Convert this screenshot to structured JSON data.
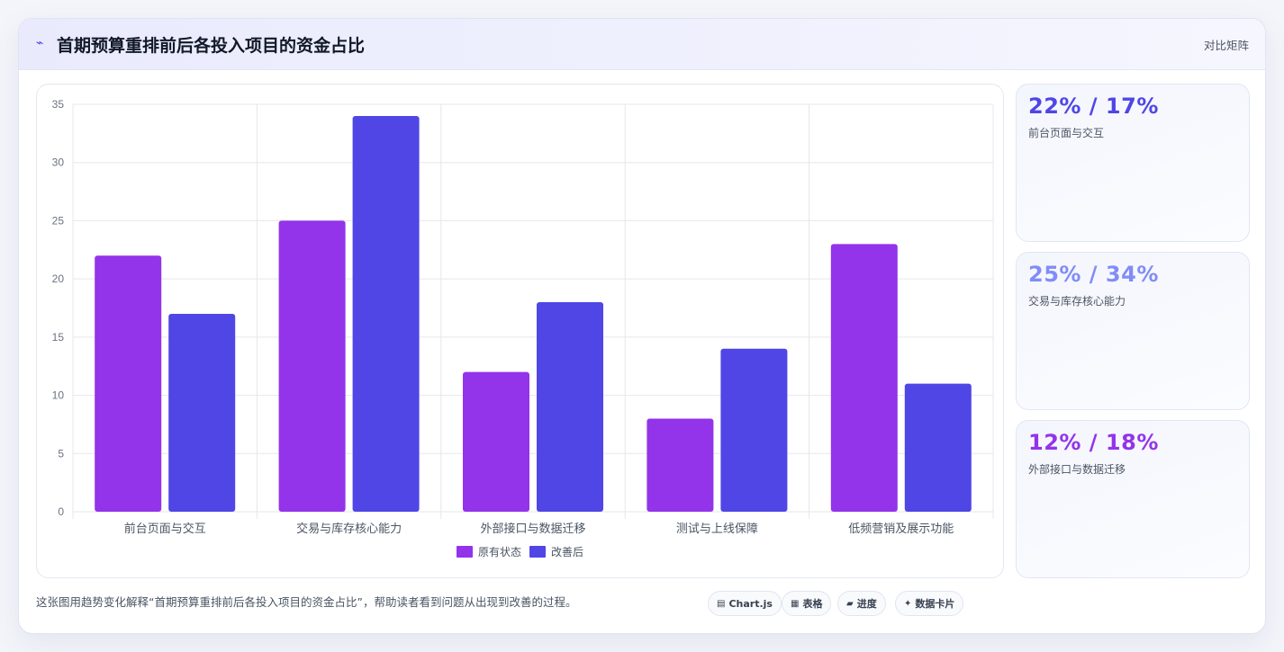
{
  "header": {
    "title": "首期预算重排前后各投入项目的资金占比",
    "right_link": "对比矩阵"
  },
  "chart_data": {
    "type": "bar",
    "categories": [
      "前台页面与交互",
      "交易与库存核心能力",
      "外部接口与数据迁移",
      "测试与上线保障",
      "低频营销及展示功能"
    ],
    "series": [
      {
        "name": "原有状态",
        "values": [
          22,
          25,
          12,
          8,
          23
        ],
        "color": "#9333ea"
      },
      {
        "name": "改善后",
        "values": [
          17,
          34,
          18,
          14,
          11
        ],
        "color": "#4f46e5"
      }
    ],
    "ylim": [
      0,
      35
    ],
    "yticks": [
      0,
      5,
      10,
      15,
      20,
      25,
      30,
      35
    ],
    "grid": true,
    "legend_position": "bottom"
  },
  "stat_cards": [
    {
      "value": "22% / 17%",
      "label": "前台页面与交互",
      "color": "#4f46e5"
    },
    {
      "value": "25% / 34%",
      "label": "交易与库存核心能力",
      "color": "#818cf8"
    },
    {
      "value": "12% / 18%",
      "label": "外部接口与数据迁移",
      "color": "#9333ea"
    }
  ],
  "footer": {
    "description": "这张图用趋势变化解释“首期预算重排前后各投入项目的资金占比”，帮助读者看到问题从出现到改善的过程。",
    "tags": [
      {
        "icon": "▤",
        "label": "Chart.js"
      },
      {
        "icon": "▦",
        "label": "表格"
      },
      {
        "icon": "▰",
        "label": "进度"
      },
      {
        "icon": "✦",
        "label": "数据卡片"
      }
    ]
  }
}
